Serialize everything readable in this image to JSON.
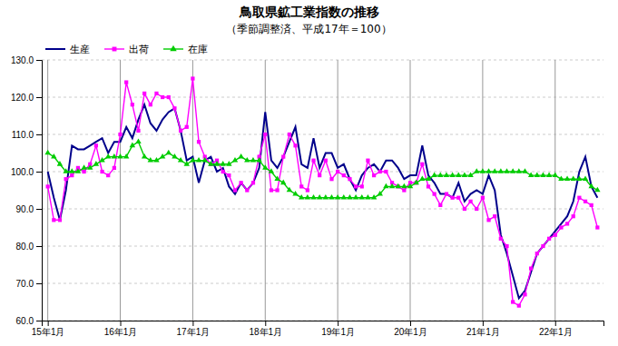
{
  "chart_data": {
    "type": "line",
    "title": "鳥取県鉱工業指数の推移",
    "subtitle": "（季節調整済、平成17年＝100）",
    "categories": [
      "15年1月",
      null,
      null,
      null,
      null,
      null,
      null,
      null,
      null,
      null,
      null,
      null,
      "16年1月",
      null,
      null,
      null,
      null,
      null,
      null,
      null,
      null,
      null,
      null,
      null,
      "17年1月",
      null,
      null,
      null,
      null,
      null,
      null,
      null,
      null,
      null,
      null,
      null,
      "18年1月",
      null,
      null,
      null,
      null,
      null,
      null,
      null,
      null,
      null,
      null,
      null,
      "19年1月",
      null,
      null,
      null,
      null,
      null,
      null,
      null,
      null,
      null,
      null,
      null,
      "20年1月",
      null,
      null,
      null,
      null,
      null,
      null,
      null,
      null,
      null,
      null,
      null,
      "21年1月",
      null,
      null,
      null,
      null,
      null,
      null,
      null,
      null,
      null,
      null,
      null,
      "22年1月",
      null,
      null,
      null,
      null,
      null,
      null,
      null
    ],
    "series": [
      {
        "name": "生産",
        "color": "#00008B",
        "values": [
          100.0,
          93.0,
          87.0,
          95.0,
          107.0,
          106.0,
          106.0,
          107.0,
          108.0,
          109.0,
          105.0,
          108.0,
          108.0,
          112.0,
          109.0,
          114.0,
          118.0,
          113.0,
          111.0,
          114.0,
          116.0,
          117.0,
          111.0,
          103.0,
          104.0,
          97.0,
          103.0,
          104.0,
          100.0,
          101.0,
          96.0,
          94.0,
          97.0,
          95.0,
          97.0,
          101.0,
          116.0,
          103.0,
          101.0,
          104.0,
          108.0,
          112.0,
          102.0,
          101.0,
          109.0,
          101.0,
          105.0,
          105.0,
          101.0,
          102.0,
          98.0,
          95.0,
          99.0,
          101.0,
          102.0,
          100.0,
          103.0,
          103.0,
          101.0,
          98.0,
          99.0,
          99.0,
          107.0,
          99.0,
          97.0,
          94.0,
          94.0,
          93.0,
          97.0,
          92.0,
          94.0,
          95.0,
          94.0,
          99.0,
          95.0,
          83.0,
          78.0,
          72.0,
          66.0,
          68.0,
          73.0,
          78.0,
          80.0,
          82.0,
          84.0,
          86.0,
          88.0,
          92.0,
          100.0,
          104.0,
          96.0,
          93.0
        ]
      },
      {
        "name": "出荷",
        "color": "#FF00FF",
        "marker": "square",
        "values": [
          96.0,
          87.0,
          87.0,
          98.0,
          99.0,
          101.0,
          100.0,
          102.0,
          107.0,
          100.0,
          99.0,
          101.0,
          110.0,
          124.0,
          118.0,
          111.0,
          121.0,
          118.0,
          121.0,
          120.0,
          120.0,
          117.0,
          111.0,
          112.0,
          125.0,
          108.0,
          104.0,
          102.0,
          103.0,
          100.0,
          99.0,
          95.0,
          97.0,
          95.0,
          97.0,
          104.0,
          110.0,
          95.0,
          95.0,
          104.0,
          110.0,
          107.0,
          96.0,
          95.0,
          103.0,
          99.0,
          103.0,
          98.0,
          100.0,
          99.0,
          98.0,
          96.0,
          96.0,
          103.0,
          99.0,
          100.0,
          100.0,
          97.0,
          96.0,
          95.0,
          97.0,
          97.0,
          102.0,
          96.0,
          94.0,
          91.0,
          94.0,
          93.0,
          93.0,
          90.0,
          92.0,
          90.0,
          93.0,
          87.0,
          88.0,
          82.0,
          80.0,
          65.0,
          64.0,
          67.0,
          74.0,
          78.0,
          80.0,
          82.0,
          83.0,
          85.0,
          86.0,
          88.0,
          93.0,
          92.0,
          91.0,
          85.0
        ]
      },
      {
        "name": "在庫",
        "color": "#00CC00",
        "marker": "triangle",
        "values": [
          105.0,
          104.0,
          102.0,
          100.0,
          100.0,
          100.0,
          101.0,
          101.0,
          102.0,
          103.0,
          104.0,
          104.0,
          104.0,
          104.0,
          107.0,
          108.0,
          104.0,
          103.0,
          103.0,
          104.0,
          105.0,
          104.0,
          103.0,
          102.0,
          103.0,
          103.0,
          103.0,
          102.0,
          102.0,
          102.0,
          102.0,
          103.0,
          104.0,
          103.0,
          103.0,
          103.0,
          101.0,
          100.0,
          98.0,
          97.0,
          95.0,
          94.0,
          93.0,
          93.0,
          93.0,
          93.0,
          93.0,
          93.0,
          93.0,
          93.0,
          93.0,
          93.0,
          93.0,
          93.0,
          93.0,
          94.0,
          96.0,
          96.0,
          96.0,
          96.0,
          96.0,
          97.0,
          98.0,
          98.0,
          99.0,
          99.0,
          99.0,
          99.0,
          99.0,
          99.0,
          99.0,
          100.0,
          100.0,
          100.0,
          100.0,
          100.0,
          100.0,
          100.0,
          100.0,
          100.0,
          99.0,
          99.0,
          99.0,
          99.0,
          99.0,
          98.0,
          98.0,
          98.0,
          98.0,
          98.0,
          96.0,
          95.0
        ]
      }
    ],
    "ylim": [
      60.0,
      130.0
    ],
    "yticks": [
      {
        "value": 60.0,
        "label": "60.0"
      },
      {
        "value": 70.0,
        "label": "70.0"
      },
      {
        "value": 80.0,
        "label": "80.0"
      },
      {
        "value": 90.0,
        "label": "90.0"
      },
      {
        "value": 100.0,
        "label": "100.0"
      },
      {
        "value": 110.0,
        "label": "110.0"
      },
      {
        "value": 120.0,
        "label": "120.0"
      },
      {
        "value": 130.0,
        "label": "130.0"
      }
    ],
    "grid": true,
    "legend": "upper left"
  }
}
